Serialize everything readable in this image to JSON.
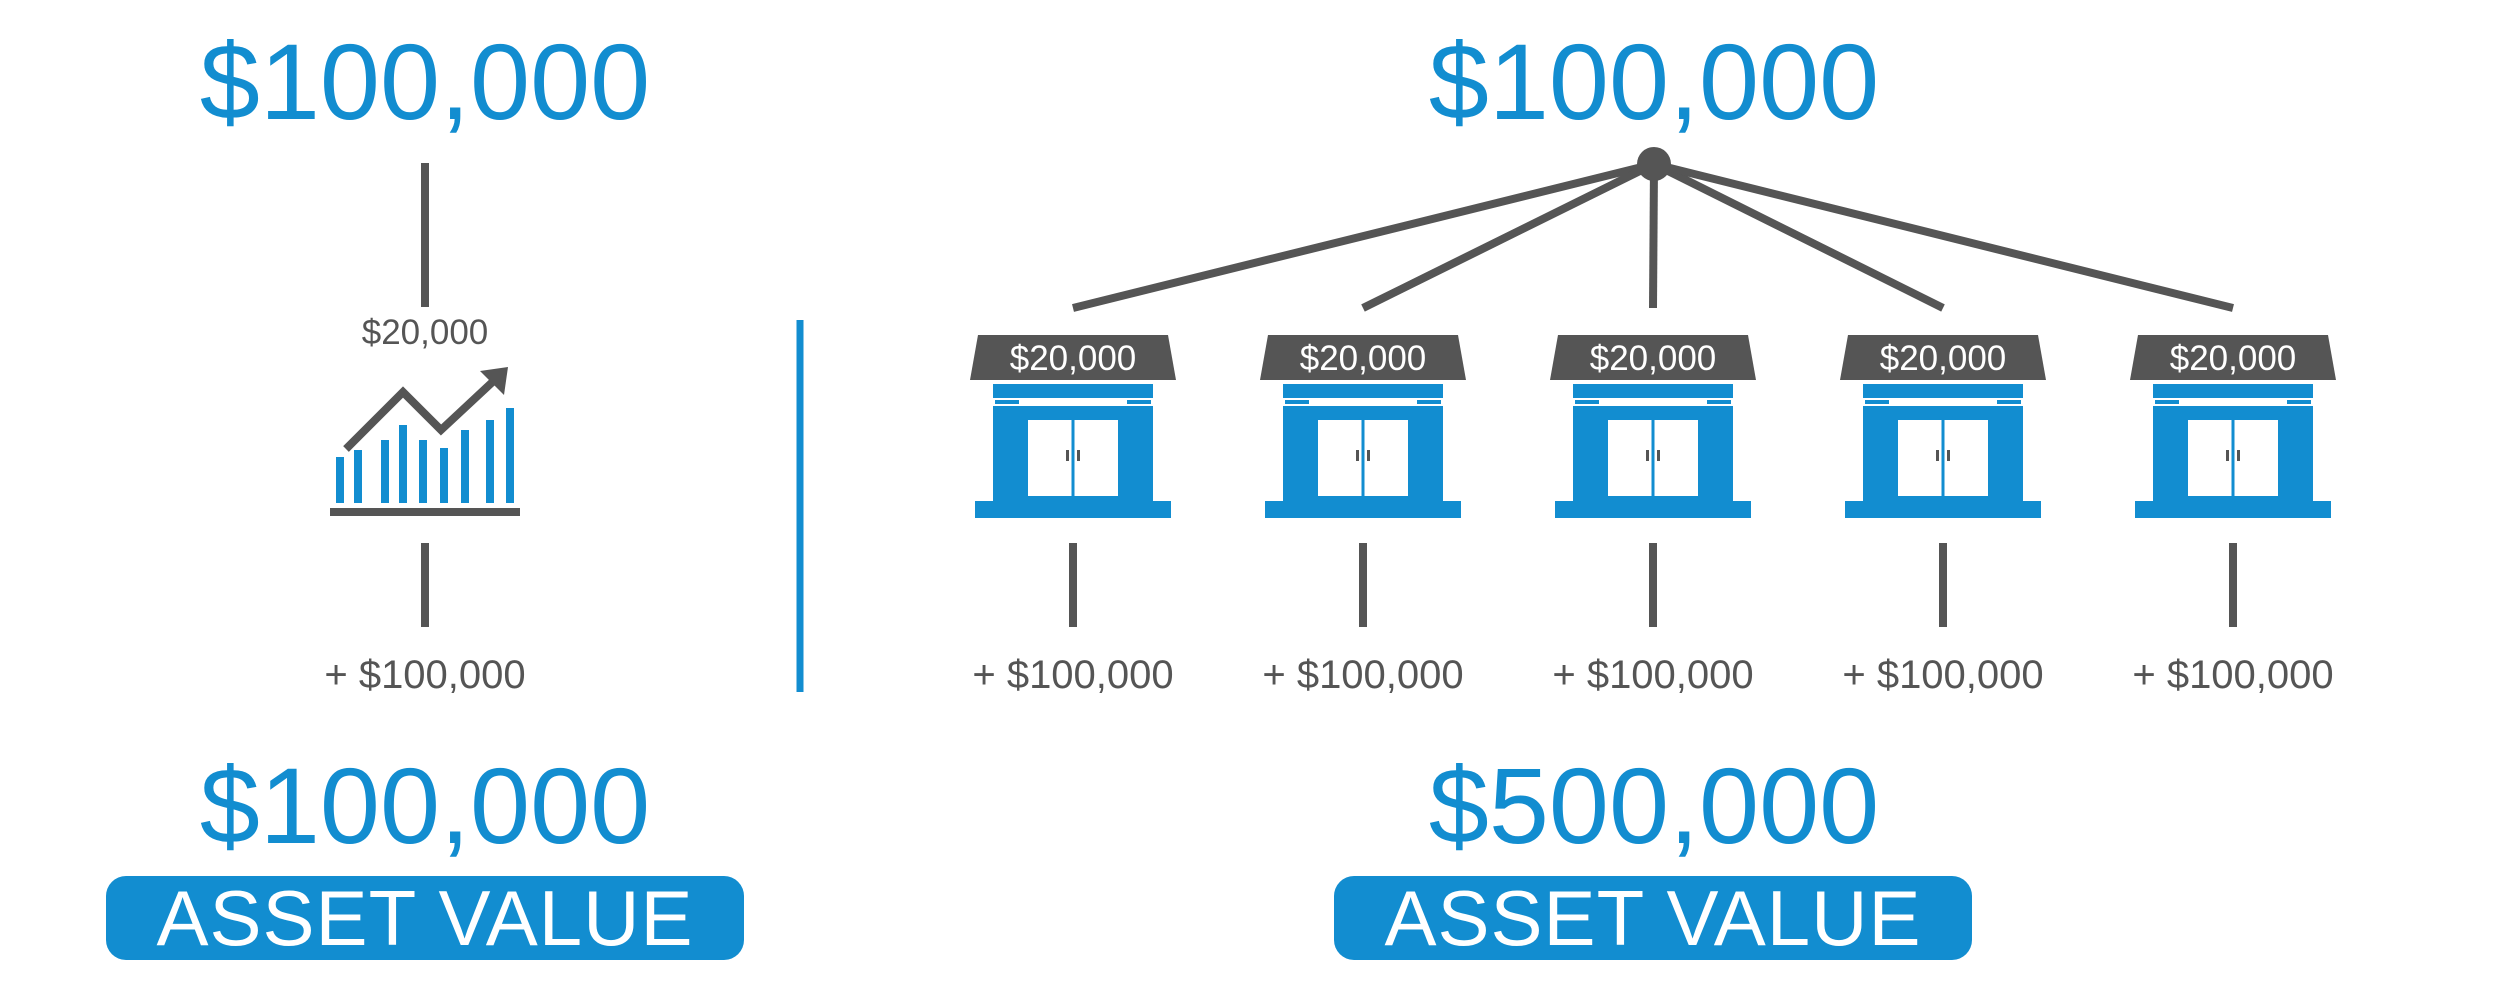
{
  "colors": {
    "accent": "#128dd0",
    "ink": "#555555"
  },
  "left": {
    "top_amount": "$100,000",
    "investment_label": "$20,000",
    "investment_icon": "growth-chart-icon",
    "return_label": "+ $100,000",
    "total_amount": "$100,000",
    "asset_label": "ASSET VALUE"
  },
  "right": {
    "top_amount": "$100,000",
    "stores": [
      {
        "cost": "$20,000",
        "return": "+ $100,000",
        "icon": "storefront-icon"
      },
      {
        "cost": "$20,000",
        "return": "+ $100,000",
        "icon": "storefront-icon"
      },
      {
        "cost": "$20,000",
        "return": "+ $100,000",
        "icon": "storefront-icon"
      },
      {
        "cost": "$20,000",
        "return": "+ $100,000",
        "icon": "storefront-icon"
      },
      {
        "cost": "$20,000",
        "return": "+ $100,000",
        "icon": "storefront-icon"
      }
    ],
    "total_amount": "$500,000",
    "asset_label": "ASSET VALUE"
  }
}
